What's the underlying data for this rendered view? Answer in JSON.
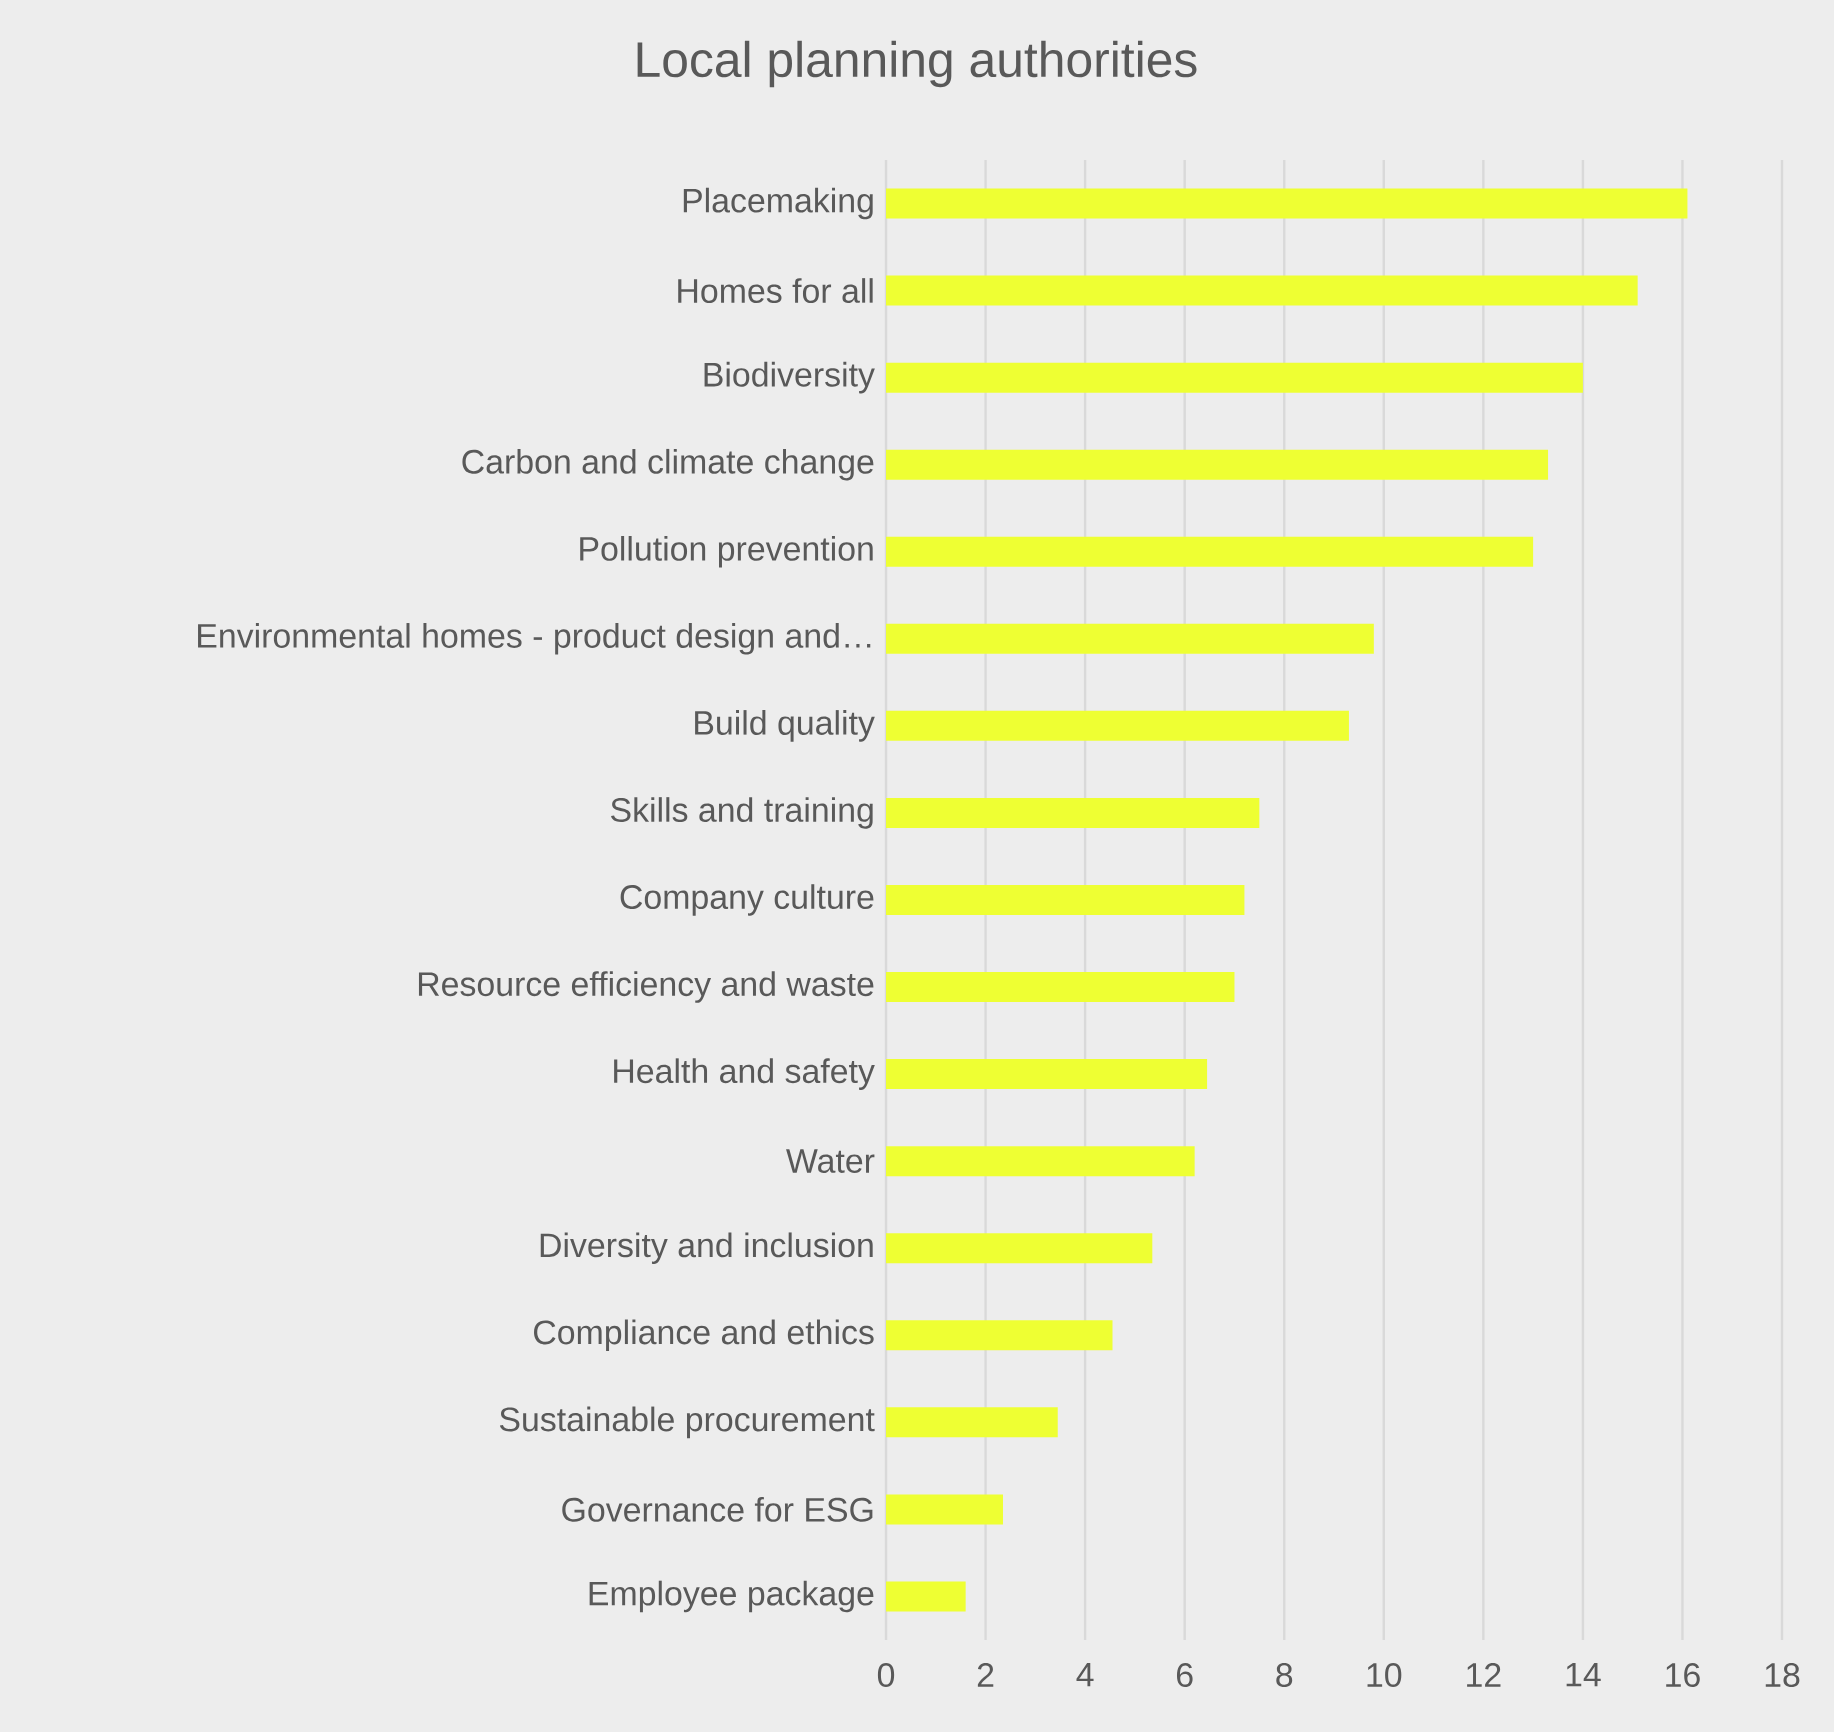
{
  "chart_data": {
    "type": "bar",
    "orientation": "horizontal",
    "title": "Local planning authorities",
    "categories": [
      "Placemaking",
      "Homes for all",
      "Biodiversity",
      "Carbon and climate change",
      "Pollution prevention",
      "Environmental homes - product design and…",
      "Build quality",
      "Skills and training",
      "Company culture",
      "Resource efficiency and waste",
      "Health and safety",
      "Water",
      "Diversity and inclusion",
      "Compliance and ethics",
      "Sustainable procurement",
      "Governance for ESG",
      "Employee package"
    ],
    "values": [
      16.1,
      15.1,
      14.0,
      13.3,
      13.0,
      9.8,
      9.3,
      7.5,
      7.2,
      7.0,
      6.45,
      6.2,
      5.35,
      4.55,
      3.45,
      2.35,
      1.6
    ],
    "color": "#eeff33",
    "xlim": [
      0,
      18
    ],
    "xticks": [
      0,
      2,
      4,
      6,
      8,
      10,
      12,
      14,
      16,
      18
    ],
    "grid": "x"
  }
}
